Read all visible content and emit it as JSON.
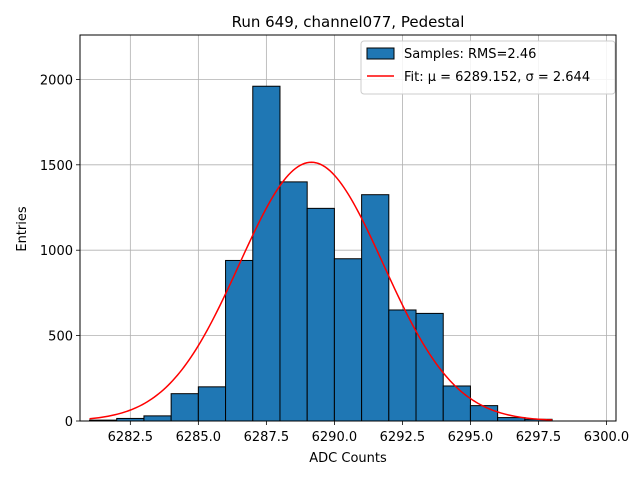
{
  "chart_data": {
    "type": "bar",
    "title": "Run 649, channel077, Pedestal",
    "xlabel": "ADC Counts",
    "ylabel": "Entries",
    "xlim": [
      6280.65,
      6300.35
    ],
    "ylim": [
      0,
      2260
    ],
    "xticks": [
      6282.5,
      6285.0,
      6287.5,
      6290.0,
      6292.5,
      6295.0,
      6297.5,
      6300.0
    ],
    "xtick_labels": [
      "6282.5",
      "6285.0",
      "6287.5",
      "6290.0",
      "6292.5",
      "6295.0",
      "6297.5",
      "6300.0"
    ],
    "yticks": [
      0,
      500,
      1000,
      1500,
      2000
    ],
    "ytick_labels": [
      "0",
      "500",
      "1000",
      "1500",
      "2000"
    ],
    "grid": true,
    "legend_position": "top-right",
    "bin_edges": [
      6281,
      6282,
      6283,
      6284,
      6285,
      6286,
      6287,
      6288,
      6289,
      6290,
      6291,
      6292,
      6293,
      6294,
      6295,
      6296,
      6297,
      6298
    ],
    "series": [
      {
        "name": "Samples: RMS=2.46",
        "kind": "histogram",
        "color": "#1f77b4",
        "values": [
          5,
          15,
          30,
          160,
          200,
          940,
          1960,
          1400,
          1245,
          950,
          1325,
          650,
          630,
          205,
          90,
          20,
          10
        ]
      },
      {
        "name": "Fit: μ = 6289.152, σ = 2.644",
        "kind": "gaussian-line",
        "color": "#ff0000",
        "mu": 6289.152,
        "sigma": 2.644,
        "amplitude": 1515,
        "x_range": [
          6281,
          6298
        ]
      }
    ]
  }
}
